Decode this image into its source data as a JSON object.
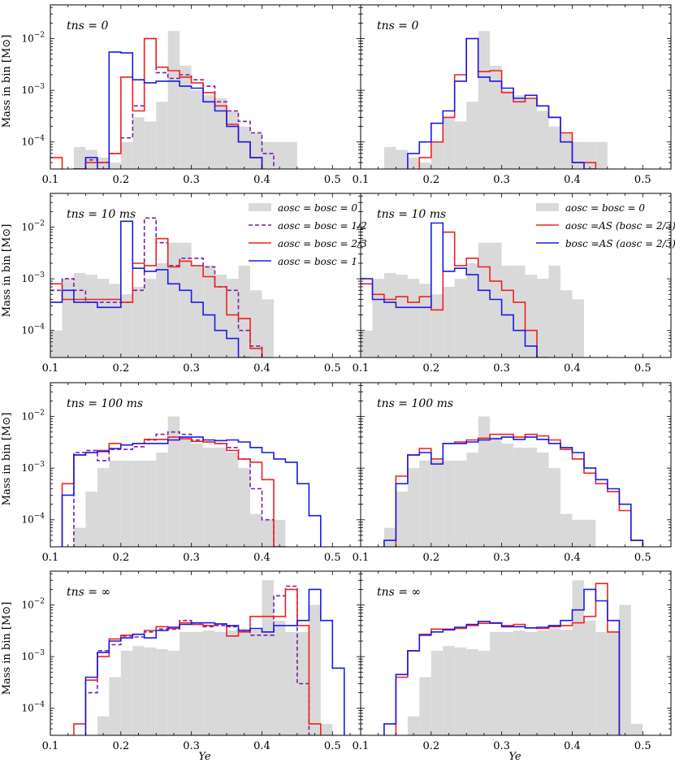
{
  "figure": {
    "ylabel": "Mass in bin [M⊙]",
    "xlabel": "Ye"
  },
  "chart_data": {
    "type": "histogram-step",
    "x_axis": {
      "label": "Ye",
      "range": [
        0.1,
        0.54
      ],
      "ticks": [
        0.1,
        0.2,
        0.3,
        0.4,
        0.5
      ]
    },
    "y_axis": {
      "label": "Mass in bin [M⊙]",
      "scale": "log",
      "range": [
        3e-05,
        0.045
      ],
      "ticks": [
        "10^-4",
        "10^-3",
        "10^-2"
      ]
    },
    "bins": [
      0.1,
      0.1167,
      0.1333,
      0.15,
      0.1667,
      0.1833,
      0.2,
      0.2167,
      0.2333,
      0.25,
      0.2667,
      0.2833,
      0.3,
      0.3167,
      0.3333,
      0.35,
      0.3667,
      0.3833,
      0.4,
      0.4167,
      0.4333,
      0.45,
      0.4667,
      0.4833,
      0.5,
      0.5167,
      0.5333
    ],
    "colors": {
      "gray": "#d9d9d9",
      "red": "#ee2222",
      "blue": "#1a1ae6",
      "purple": "#7a1fa2"
    },
    "legends": {
      "left": [
        {
          "label": "aosc = bosc = 0",
          "style": "gray"
        },
        {
          "label": "aosc = bosc = 1/2",
          "style": "purple"
        },
        {
          "label": "aosc = bosc = 2/3",
          "style": "red"
        },
        {
          "label": "aosc = bosc = 1",
          "style": "blue"
        }
      ],
      "right": [
        {
          "label": "aosc = bosc = 0",
          "style": "gray"
        },
        {
          "label": "aosc =AS (bosc = 2/3)",
          "style": "red"
        },
        {
          "label": "bosc =AS (aosc = 2/3)",
          "style": "blue"
        }
      ]
    },
    "panels": [
      {
        "id": "row1-left",
        "label": "tns = 0",
        "series": {
          "gray": [
            0,
            0,
            8e-05,
            7e-05,
            5e-05,
            4e-05,
            0.0001,
            0.0003,
            0.00025,
            0.0006,
            0.014,
            0.003,
            0.001,
            0.0008,
            0.0007,
            0.0004,
            0.0002,
            0.00015,
            0.0001,
            0.0001,
            0.0001,
            0,
            0,
            0,
            0,
            0
          ],
          "purple": [
            0,
            0,
            0,
            4.5e-05,
            4e-05,
            6e-05,
            0.00012,
            0.0005,
            0.01,
            0.0022,
            0.0017,
            0.002,
            0.0016,
            0.0012,
            0.0006,
            0.0004,
            0.00025,
            0.00015,
            6e-05,
            0,
            0,
            0,
            0,
            0,
            0,
            0
          ],
          "red": [
            5e-05,
            2.5e-05,
            3e-05,
            4e-05,
            4e-05,
            6e-05,
            0.0018,
            0.0004,
            0.01,
            0.0028,
            0.0024,
            0.0018,
            0.0014,
            0.0009,
            0.0005,
            0.00022,
            0.0001,
            5e-05,
            2.5e-05,
            0,
            0,
            0,
            0,
            0,
            0,
            0
          ],
          "blue": [
            0,
            0,
            3e-05,
            5e-05,
            3e-05,
            0.0055,
            0.0053,
            0.0016,
            0.0014,
            0.0015,
            0.0015,
            0.0012,
            0.0011,
            0.0006,
            0.0004,
            0.0002,
            0.0001,
            5e-05,
            2.5e-05,
            0,
            0,
            0,
            0,
            0,
            0,
            0
          ]
        }
      },
      {
        "id": "row1-right",
        "label": "tns = 0",
        "series": {
          "gray": [
            0,
            0,
            8e-05,
            7e-05,
            5e-05,
            4e-05,
            0.0001,
            0.0003,
            0.00025,
            0.0006,
            0.014,
            0.003,
            0.001,
            0.0008,
            0.0007,
            0.0004,
            0.0002,
            0.00015,
            0.0001,
            0.0001,
            0.0001,
            0,
            0,
            0,
            0,
            0
          ],
          "red": [
            0,
            0,
            0,
            0,
            2.5e-05,
            5e-05,
            0.0001,
            0.0003,
            0.002,
            0.01,
            0.0023,
            0.0024,
            0.0009,
            0.0006,
            0.0007,
            0.0005,
            0.0003,
            0.00015,
            4e-05,
            4e-05,
            0,
            0,
            0,
            0,
            0,
            0
          ],
          "blue": [
            0,
            0,
            0,
            2.5e-05,
            6e-05,
            0.0001,
            0.00023,
            0.0004,
            0.0015,
            0.01,
            0.0018,
            0.0015,
            0.0011,
            0.0007,
            0.0008,
            0.0005,
            0.0003,
            0.0001,
            4e-05,
            3e-05,
            0,
            0,
            0,
            0,
            0,
            0
          ]
        }
      },
      {
        "id": "row2-left",
        "label": "tns = 10 ms",
        "series": {
          "gray": [
            0.0001,
            0.001,
            0.0013,
            0.0012,
            0.001,
            0.0008,
            0.0005,
            0.0007,
            0.001,
            0.002,
            0.005,
            0.005,
            0.0018,
            0.0018,
            0.0012,
            0.001,
            0.0018,
            0.0006,
            0.0004,
            0,
            0,
            0,
            0,
            0,
            0,
            0
          ],
          "purple": [
            0.0006,
            0.001,
            0.0006,
            0.00035,
            0.00035,
            0.00035,
            0.00035,
            0.0006,
            0.015,
            0.005,
            0.0018,
            0.0025,
            0.0025,
            0.0017,
            0.0007,
            0.0006,
            0.0001,
            5e-05,
            0,
            0,
            0,
            0,
            0,
            0,
            0,
            0
          ],
          "red": [
            0.0008,
            0.0004,
            0.0004,
            0.0004,
            0.0004,
            0.0004,
            0.00035,
            0.002,
            0.0018,
            0.006,
            0.0017,
            0.0022,
            0.0018,
            0.0011,
            0.0007,
            0.0002,
            0.00017,
            4.5e-05,
            0,
            0,
            0,
            0,
            0,
            0,
            0,
            0
          ],
          "blue": [
            0.00035,
            0.0006,
            0.00035,
            0.00035,
            0.00028,
            0.00028,
            0.013,
            0.0016,
            0.0014,
            0.0015,
            0.0008,
            0.0006,
            0.00035,
            0.0002,
            0.0001,
            7e-05,
            3e-05,
            0,
            0,
            0,
            0,
            0,
            0,
            0,
            0,
            0
          ]
        }
      },
      {
        "id": "row2-right",
        "label": "tns = 10 ms",
        "series": {
          "gray": [
            0.0001,
            0.001,
            0.0013,
            0.0012,
            0.001,
            0.0008,
            0.0005,
            0.0007,
            0.001,
            0.002,
            0.005,
            0.005,
            0.0018,
            0.0018,
            0.0012,
            0.001,
            0.0018,
            0.0006,
            0.0004,
            0,
            0,
            0,
            0,
            0,
            0,
            0
          ],
          "red": [
            0.0008,
            0.0005,
            0.0004,
            0.00045,
            0.00035,
            0.00045,
            0.00025,
            0.008,
            0.0018,
            0.0025,
            0.0017,
            0.0009,
            0.0006,
            0.00035,
            0.0001,
            3e-05,
            0,
            0,
            0,
            0,
            0,
            0,
            0,
            0,
            0,
            0
          ],
          "blue": [
            0.001,
            0.0004,
            0.00035,
            0.00028,
            0.00028,
            0.00028,
            0.012,
            0.0014,
            0.0016,
            0.0012,
            0.0006,
            0.0004,
            0.0002,
            0.0001,
            5e-05,
            0,
            0,
            0,
            0,
            0,
            0,
            0,
            0,
            0,
            0,
            0
          ]
        }
      },
      {
        "id": "row3-left",
        "label": "tns = 100 ms",
        "series": {
          "gray": [
            0,
            0,
            7e-05,
            0.00035,
            0.001,
            0.0014,
            0.0014,
            0.0014,
            0.0014,
            0.002,
            0.01,
            0.004,
            0.003,
            0.0025,
            0.0025,
            0.002,
            0.001,
            0.00013,
            0.0001,
            0.0001,
            0,
            0,
            0,
            0,
            0,
            0
          ],
          "purple": [
            0,
            0,
            0.002,
            0.0022,
            0.0014,
            0.0023,
            0.0023,
            0.0026,
            0.0035,
            0.0045,
            0.005,
            0.0045,
            0.0035,
            0.0032,
            0.003,
            0.0025,
            0.0015,
            0.0004,
            0.0001,
            0,
            0,
            0,
            0,
            0,
            0,
            0
          ],
          "red": [
            0,
            0.0005,
            0.0018,
            0.002,
            0.0022,
            0.003,
            0.0028,
            0.003,
            0.0036,
            0.0036,
            0.004,
            0.0037,
            0.0033,
            0.0032,
            0.003,
            0.0022,
            0.0015,
            0.0013,
            0.0006,
            3e-05,
            0,
            0,
            0,
            0,
            0,
            0
          ],
          "blue": [
            0,
            0.0003,
            0.0018,
            0.002,
            0.0021,
            0.0024,
            0.0028,
            0.003,
            0.003,
            0.003,
            0.0035,
            0.004,
            0.004,
            0.0035,
            0.0034,
            0.0035,
            0.0032,
            0.0025,
            0.002,
            0.0015,
            0.0013,
            0.0005,
            0.00012,
            0,
            0,
            0
          ]
        }
      },
      {
        "id": "row3-right",
        "label": "tns = 100 ms",
        "series": {
          "gray": [
            0,
            0,
            7e-05,
            0.00035,
            0.001,
            0.0014,
            0.0014,
            0.0014,
            0.0014,
            0.002,
            0.01,
            0.004,
            0.003,
            0.0025,
            0.0025,
            0.002,
            0.001,
            0.00013,
            0.0001,
            0.0001,
            0,
            0,
            0,
            0,
            0,
            0
          ],
          "red": [
            0,
            0,
            0,
            0.0007,
            0.0018,
            0.0024,
            0.0015,
            0.003,
            0.0032,
            0.0035,
            0.0038,
            0.0045,
            0.0045,
            0.004,
            0.0045,
            0.0042,
            0.0035,
            0.0023,
            0.0015,
            0.0008,
            0.0005,
            0.00035,
            0.00015,
            4e-05,
            0,
            0
          ],
          "blue": [
            0,
            0,
            4e-05,
            0.0005,
            0.0018,
            0.002,
            0.0012,
            0.003,
            0.003,
            0.0032,
            0.0035,
            0.0037,
            0.004,
            0.0036,
            0.004,
            0.0036,
            0.003,
            0.0025,
            0.002,
            0.001,
            0.0006,
            0.0004,
            0.0002,
            4e-05,
            0,
            0
          ]
        }
      },
      {
        "id": "row4-left",
        "label": "tns = ∞",
        "series": {
          "gray": [
            0,
            0,
            0,
            0,
            7e-05,
            0.0004,
            0.0013,
            0.0016,
            0.0015,
            0.0014,
            0.0013,
            0.003,
            0.003,
            0.0032,
            0.003,
            0.0032,
            0.0035,
            0.0033,
            0.03,
            0.005,
            0.003,
            0.003,
            0.01,
            5e-05,
            0,
            0
          ],
          "purple": [
            0,
            0,
            0,
            0.0002,
            0.0013,
            0.0017,
            0.0025,
            0.0024,
            0.003,
            0.0034,
            0.0034,
            0.005,
            0.0042,
            0.0038,
            0.004,
            0.0038,
            0.0032,
            0.0026,
            0.0026,
            0.015,
            0.023,
            0.0003,
            0,
            0,
            0,
            0
          ],
          "red": [
            0,
            0,
            5e-05,
            0.00035,
            0.001,
            0.0022,
            0.0026,
            0.0027,
            0.0032,
            0.0038,
            0.0035,
            0.0045,
            0.0042,
            0.004,
            0.0043,
            0.0025,
            0.003,
            0.006,
            0.006,
            0.006,
            0.02,
            0.004,
            5e-05,
            0,
            0,
            0
          ],
          "blue": [
            0,
            0,
            0,
            0.0004,
            0.0012,
            0.002,
            0.0023,
            0.0027,
            0.0023,
            0.0032,
            0.0037,
            0.0042,
            0.0045,
            0.0045,
            0.0043,
            0.004,
            0.0032,
            0.0035,
            0.003,
            0.004,
            0.004,
            0.005,
            0.02,
            0.005,
            0.0006,
            0
          ]
        }
      },
      {
        "id": "row4-right",
        "label": "tns = ∞",
        "series": {
          "gray": [
            0,
            0,
            0,
            0,
            7e-05,
            0.0004,
            0.0013,
            0.0016,
            0.0015,
            0.0014,
            0.0013,
            0.003,
            0.003,
            0.0032,
            0.003,
            0.0032,
            0.0035,
            0.0033,
            0.03,
            0.005,
            0.003,
            0.003,
            0.01,
            5e-05,
            0,
            0
          ],
          "red": [
            0,
            0,
            0,
            0.0004,
            0.0013,
            0.0027,
            0.0034,
            0.0034,
            0.0035,
            0.004,
            0.0044,
            0.0044,
            0.004,
            0.0042,
            0.0036,
            0.0035,
            0.0038,
            0.004,
            0.0045,
            0.006,
            0.026,
            0.003,
            0,
            0,
            0,
            0
          ],
          "blue": [
            0,
            0,
            5e-05,
            0.00045,
            0.0013,
            0.0026,
            0.003,
            0.0033,
            0.0037,
            0.0042,
            0.0048,
            0.0045,
            0.0038,
            0.0038,
            0.0036,
            0.0037,
            0.004,
            0.005,
            0.008,
            0.02,
            0.012,
            0.005,
            0,
            0,
            0,
            0
          ]
        }
      }
    ]
  }
}
